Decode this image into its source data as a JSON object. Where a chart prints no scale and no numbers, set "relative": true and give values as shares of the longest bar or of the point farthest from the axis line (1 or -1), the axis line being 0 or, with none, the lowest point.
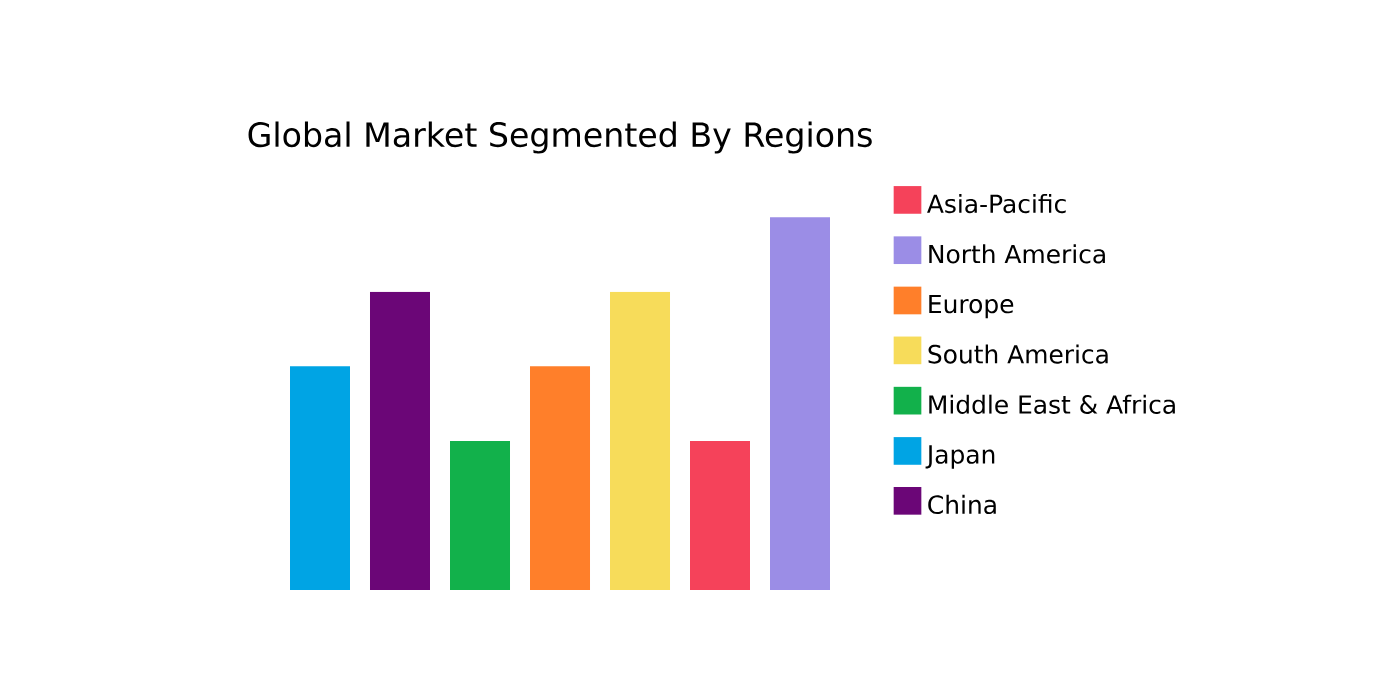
{
  "chart_data": {
    "type": "bar",
    "title": "Global Market Segmented By Regions",
    "relative": true,
    "categories": [
      null,
      null,
      null,
      null,
      null,
      null,
      null
    ],
    "series": [
      {
        "name": "Asia-Pacific",
        "color": "#f5425a",
        "values": [
          null,
          null,
          null,
          null,
          null,
          0.4,
          null
        ]
      },
      {
        "name": "North America",
        "color": "#9b8de6",
        "values": [
          null,
          null,
          null,
          null,
          null,
          null,
          1
        ]
      },
      {
        "name": "Europe",
        "color": "#ff7f2a",
        "values": [
          null,
          null,
          null,
          0.6,
          null,
          null,
          null
        ]
      },
      {
        "name": "South America",
        "color": "#f7dc5a",
        "values": [
          null,
          null,
          null,
          null,
          0.8,
          null,
          null
        ]
      },
      {
        "name": "Middle East & Africa",
        "color": "#12b14b",
        "values": [
          null,
          null,
          0.4,
          null,
          null,
          null,
          null
        ]
      },
      {
        "name": "Japan",
        "color": "#00a4e4",
        "values": [
          0.6,
          null,
          null,
          null,
          null,
          null,
          null
        ]
      },
      {
        "name": "China",
        "color": "#6b0677",
        "values": [
          null,
          0.8,
          null,
          null,
          null,
          null,
          null
        ]
      }
    ],
    "stacked": true,
    "legend": "right"
  }
}
